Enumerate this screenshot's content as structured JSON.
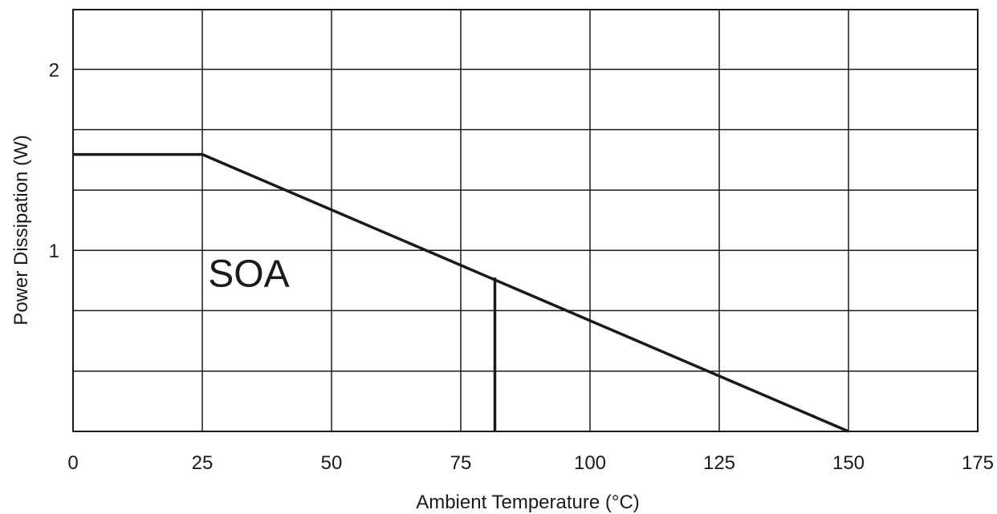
{
  "chart_data": {
    "type": "line",
    "xlabel": "Ambient Temperature (°C)",
    "ylabel": "Power Dissipation (W)",
    "xlim": [
      0,
      175
    ],
    "ylim": [
      0,
      2.33
    ],
    "x_ticks": [
      0,
      25,
      50,
      75,
      100,
      125,
      150,
      175
    ],
    "x_tick_labels": [
      "0",
      "25",
      "50",
      "75",
      "100",
      "125",
      "150",
      "175"
    ],
    "y_ticks": [
      1,
      2
    ],
    "y_tick_labels": [
      "1",
      "2"
    ],
    "y_gridlines": [
      0.333,
      0.667,
      1,
      1.333,
      1.667,
      2
    ],
    "grid": true,
    "series": [
      {
        "x": [
          0,
          25,
          150
        ],
        "y": [
          1.53,
          1.53,
          0
        ]
      }
    ],
    "marker_line": {
      "x": 81.6,
      "y_from": 0,
      "y_to": 0.85
    },
    "annotations": [
      {
        "text": "SOA",
        "x": 34,
        "y": 0.8
      }
    ],
    "colors": {
      "line": "#1a1a1a",
      "grid": "#1a1a1a",
      "background": "#ffffff"
    }
  }
}
